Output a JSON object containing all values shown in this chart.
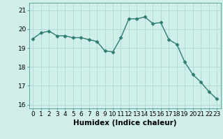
{
  "x": [
    0,
    1,
    2,
    3,
    4,
    5,
    6,
    7,
    8,
    9,
    10,
    11,
    12,
    13,
    14,
    15,
    16,
    17,
    18,
    19,
    20,
    21,
    22,
    23
  ],
  "y": [
    19.5,
    19.8,
    19.9,
    19.65,
    19.65,
    19.55,
    19.55,
    19.45,
    19.35,
    18.85,
    18.8,
    19.55,
    20.55,
    20.55,
    20.65,
    20.3,
    20.35,
    19.45,
    19.2,
    18.25,
    17.6,
    17.2,
    16.7,
    16.3
  ],
  "line_color": "#2e7d72",
  "marker": "D",
  "marker_size": 2.5,
  "bg_color": "#d0eeea",
  "grid_color": "#b0d8d4",
  "xlabel": "Humidex (Indice chaleur)",
  "ylim": [
    15.8,
    21.4
  ],
  "xlim": [
    -0.5,
    23.5
  ],
  "yticks": [
    16,
    17,
    18,
    19,
    20,
    21
  ],
  "xticks": [
    0,
    1,
    2,
    3,
    4,
    5,
    6,
    7,
    8,
    9,
    10,
    11,
    12,
    13,
    14,
    15,
    16,
    17,
    18,
    19,
    20,
    21,
    22,
    23
  ],
  "xlabel_fontsize": 7.5,
  "tick_fontsize": 6.5,
  "line_width": 1.0
}
